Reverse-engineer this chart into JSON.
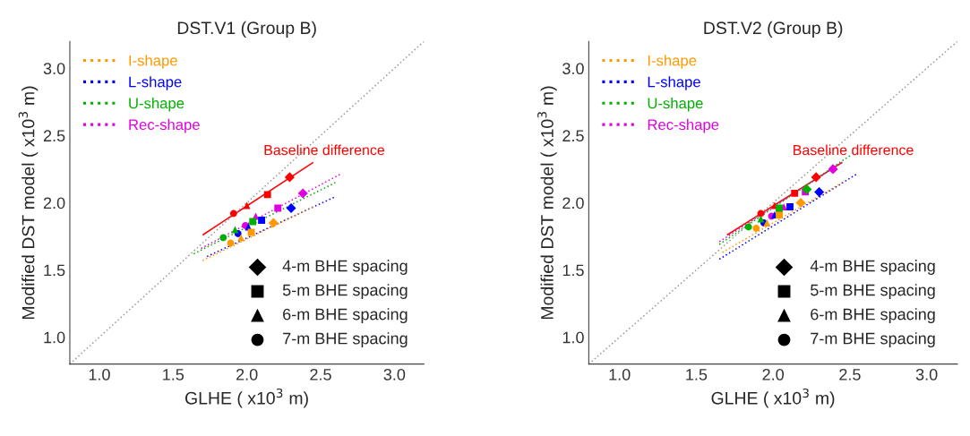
{
  "chart_data": [
    {
      "type": "scatter",
      "title": "DST.V1 (Group B)",
      "xlabel": "GLHE ( x10$^{3}$ m)",
      "ylabel": "Modified DST model ( x10$^{3}$ m)",
      "xlim": [
        0.8,
        3.2
      ],
      "ylim": [
        0.8,
        3.2
      ],
      "xticks": [
        {
          "value": 1.0,
          "label": "1.0"
        },
        {
          "value": 1.5,
          "label": "1.5"
        },
        {
          "value": 2.0,
          "label": "2.0"
        },
        {
          "value": 2.5,
          "label": "2.5"
        },
        {
          "value": 3.0,
          "label": "3.0"
        }
      ],
      "yticks": [
        {
          "value": 1.0,
          "label": "1.0"
        },
        {
          "value": 1.5,
          "label": "1.5"
        },
        {
          "value": 2.0,
          "label": "2.0"
        },
        {
          "value": 2.5,
          "label": "2.5"
        },
        {
          "value": 3.0,
          "label": "3.0"
        }
      ],
      "grid": false,
      "legend": "top left",
      "annotations": [
        "4-m BHE spacing",
        "5-m BHE spacing",
        "6-m BHE spacing",
        "7-m BHE spacing"
      ],
      "series": [
        {
          "type": "line",
          "color": "#999999",
          "line_style": "dotted",
          "x": [
            0.8,
            3.2
          ],
          "values": [
            0.8,
            3.2
          ]
        },
        {
          "type": "line",
          "name": "I-shape",
          "color": "#ff9900",
          "line_style": "dotted",
          "x": [
            1.7,
            2.45
          ],
          "values": [
            1.57,
            1.97
          ]
        },
        {
          "type": "line",
          "name": "L-shape",
          "color": "#0000ff",
          "line_style": "dotted",
          "x": [
            1.73,
            2.59
          ],
          "values": [
            1.6,
            2.04
          ]
        },
        {
          "type": "line",
          "name": "U-shape",
          "color": "#00b000",
          "line_style": "dotted",
          "x": [
            1.64,
            2.6
          ],
          "values": [
            1.62,
            2.15
          ]
        },
        {
          "type": "line",
          "name": "Rec-shape",
          "color": "#e000e0",
          "line_style": "dotted",
          "x": [
            1.69,
            2.63
          ],
          "values": [
            1.66,
            2.21
          ]
        },
        {
          "type": "line",
          "name": "Baseline difference",
          "color": "#ff0000",
          "line_style": "solid",
          "x": [
            1.7,
            2.45
          ],
          "values": [
            1.76,
            2.3
          ]
        },
        {
          "marker": "diamond",
          "colors": [
            "#ff0000",
            "#ff9900",
            "#0000ff",
            "#e000e0"
          ],
          "x": [
            2.29,
            2.18,
            2.3,
            2.38
          ],
          "values": [
            2.19,
            1.85,
            1.96,
            2.07
          ]
        },
        {
          "marker": "square",
          "colors": [
            "#ff0000",
            "#ff9900",
            "#0000ff",
            "#00b000",
            "#e000e0"
          ],
          "x": [
            2.14,
            2.03,
            2.1,
            2.04,
            2.21
          ],
          "values": [
            2.06,
            1.78,
            1.87,
            1.86,
            1.96
          ]
        },
        {
          "marker": "triangle",
          "colors": [
            "#ff0000",
            "#ff9900",
            "#0000ff",
            "#00b000",
            "#e000e0"
          ],
          "x": [
            2.0,
            1.96,
            2.01,
            1.92,
            2.06
          ],
          "values": [
            1.98,
            1.74,
            1.82,
            1.8,
            1.9
          ]
        },
        {
          "marker": "circle",
          "colors": [
            "#ff0000",
            "#ff9900",
            "#0000ff",
            "#00b000",
            "#e000e0"
          ],
          "x": [
            1.91,
            1.89,
            1.94,
            1.84,
            1.99
          ],
          "values": [
            1.92,
            1.7,
            1.77,
            1.74,
            1.83
          ]
        }
      ]
    },
    {
      "type": "scatter",
      "title": "DST.V2 (Group B)",
      "xlabel": "GLHE ( x10$^{3}$ m)",
      "ylabel": "Modified DST model ( x10$^{3}$ m)",
      "xlim": [
        0.8,
        3.2
      ],
      "ylim": [
        0.8,
        3.2
      ],
      "xticks": [
        {
          "value": 1.0,
          "label": "1.0"
        },
        {
          "value": 1.5,
          "label": "1.5"
        },
        {
          "value": 2.0,
          "label": "2.0"
        },
        {
          "value": 2.5,
          "label": "2.5"
        },
        {
          "value": 3.0,
          "label": "3.0"
        }
      ],
      "yticks": [
        {
          "value": 1.0,
          "label": "1.0"
        },
        {
          "value": 1.5,
          "label": "1.5"
        },
        {
          "value": 2.0,
          "label": "2.0"
        },
        {
          "value": 2.5,
          "label": "2.5"
        },
        {
          "value": 3.0,
          "label": "3.0"
        }
      ],
      "grid": false,
      "legend": "top left",
      "annotations": [
        "4-m BHE spacing",
        "5-m BHE spacing",
        "6-m BHE spacing",
        "7-m BHE spacing"
      ],
      "series": [
        {
          "type": "line",
          "color": "#999999",
          "line_style": "dotted",
          "x": [
            0.8,
            3.2
          ],
          "values": [
            0.8,
            3.2
          ]
        },
        {
          "type": "line",
          "name": "I-shape",
          "color": "#ff9900",
          "line_style": "dotted",
          "x": [
            1.67,
            2.45
          ],
          "values": [
            1.63,
            2.15
          ]
        },
        {
          "type": "line",
          "name": "L-shape",
          "color": "#0000ff",
          "line_style": "dotted",
          "x": [
            1.65,
            2.54
          ],
          "values": [
            1.58,
            2.21
          ]
        },
        {
          "type": "line",
          "name": "U-shape",
          "color": "#00b000",
          "line_style": "dotted",
          "x": [
            1.65,
            2.5
          ],
          "values": [
            1.69,
            2.35
          ]
        },
        {
          "type": "line",
          "name": "Rec-shape",
          "color": "#e000e0",
          "line_style": "dotted",
          "x": [
            1.65,
            2.45
          ],
          "values": [
            1.71,
            2.3
          ]
        },
        {
          "type": "line",
          "name": "Baseline difference",
          "color": "#ff0000",
          "line_style": "solid",
          "x": [
            1.7,
            2.45
          ],
          "values": [
            1.76,
            2.3
          ]
        },
        {
          "marker": "diamond",
          "colors": [
            "#ff0000",
            "#ff9900",
            "#0000ff",
            "#00b000",
            "#e000e0"
          ],
          "x": [
            2.28,
            2.18,
            2.3,
            2.22,
            2.39
          ],
          "values": [
            2.19,
            2.0,
            2.08,
            2.1,
            2.25
          ]
        },
        {
          "marker": "square",
          "colors": [
            "#ff0000",
            "#ff9900",
            "#0000ff",
            "#00b000",
            "#e000e0"
          ],
          "x": [
            2.14,
            2.04,
            2.11,
            2.04,
            2.21
          ],
          "values": [
            2.07,
            1.91,
            1.97,
            1.96,
            2.08
          ]
        },
        {
          "marker": "triangle",
          "colors": [
            "#ff0000",
            "#ff9900",
            "#0000ff",
            "#00b000",
            "#e000e0"
          ],
          "x": [
            2.01,
            1.96,
            2.01,
            1.92,
            2.07
          ],
          "values": [
            1.98,
            1.85,
            1.91,
            1.88,
            1.97
          ]
        },
        {
          "marker": "circle",
          "colors": [
            "#ff0000",
            "#ff9900",
            "#0000ff",
            "#00b000",
            "#e000e0"
          ],
          "x": [
            1.92,
            1.89,
            1.94,
            1.84,
            1.99
          ],
          "values": [
            1.92,
            1.81,
            1.85,
            1.82,
            1.9
          ]
        }
      ]
    }
  ]
}
